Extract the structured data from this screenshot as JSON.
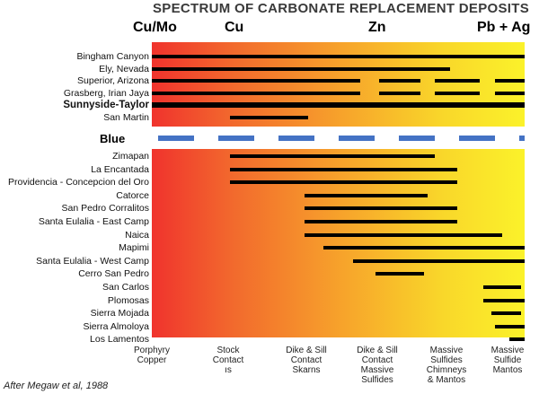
{
  "title": "SPECTRUM OF CARBONATE REPLACEMENT DEPOSITS",
  "metal_headers": [
    "Cu/Mo",
    "Cu",
    "Zn",
    "Pb + Ag"
  ],
  "blue_label": "Blue",
  "credit": "After Megaw et al, 1988",
  "colors": {
    "gradient_start": "#f0332d",
    "gradient_end": "#fbf22a",
    "dash": "#4472c4",
    "bar": "#000000"
  },
  "top_rows": [
    {
      "name": "Bingham Canyon",
      "segments": [
        [
          0,
          5
        ]
      ]
    },
    {
      "name": "Ely, Nevada",
      "segments": [
        [
          0,
          4
        ]
      ]
    },
    {
      "name": "Superior, Arizona",
      "segments": [
        [
          0,
          2.8
        ],
        [
          3.05,
          3.6
        ],
        [
          3.8,
          4.4
        ],
        [
          4.6,
          5.0
        ]
      ]
    },
    {
      "name": "Grasberg, Irian Jaya",
      "segments": [
        [
          0,
          2.8
        ],
        [
          3.05,
          3.6
        ],
        [
          3.8,
          4.4
        ],
        [
          4.6,
          5.0
        ]
      ]
    },
    {
      "name": "Sunnyside-Taylor",
      "segments": [
        [
          0,
          5
        ]
      ],
      "emphasis": true
    },
    {
      "name": "San Martin",
      "segments": [
        [
          1.05,
          2.1
        ]
      ]
    }
  ],
  "bottom_rows": [
    {
      "name": "Zimapan",
      "segments": [
        [
          1.05,
          3.8
        ]
      ]
    },
    {
      "name": "La Encantada",
      "segments": [
        [
          1.05,
          4.1
        ]
      ]
    },
    {
      "name": "Providencia - Concepcion del Oro",
      "segments": [
        [
          1.05,
          4.1
        ]
      ]
    },
    {
      "name": "Catorce",
      "segments": [
        [
          2.05,
          3.7
        ]
      ]
    },
    {
      "name": "San Pedro Corralitos",
      "segments": [
        [
          2.05,
          4.1
        ]
      ]
    },
    {
      "name": "Santa Eulalia - East Camp",
      "segments": [
        [
          2.05,
          4.1
        ]
      ]
    },
    {
      "name": "Naica",
      "segments": [
        [
          2.05,
          4.7
        ]
      ]
    },
    {
      "name": "Mapimi",
      "segments": [
        [
          2.3,
          5.0
        ]
      ]
    },
    {
      "name": "Santa Eulalia - West Camp",
      "segments": [
        [
          2.7,
          5.0
        ]
      ]
    },
    {
      "name": "Cerro San Pedro",
      "segments": [
        [
          3.0,
          3.65
        ]
      ]
    },
    {
      "name": "San Carlos",
      "segments": [
        [
          4.45,
          4.95
        ]
      ]
    },
    {
      "name": "Plomosas",
      "segments": [
        [
          4.45,
          5.0
        ]
      ]
    },
    {
      "name": "Sierra Mojada",
      "segments": [
        [
          4.55,
          4.95
        ]
      ]
    },
    {
      "name": "Sierra Almoloya",
      "segments": [
        [
          4.6,
          5.0
        ]
      ]
    },
    {
      "name": "Los Lamentos",
      "segments": [
        [
          4.8,
          5.0
        ]
      ]
    }
  ],
  "x_categories": [
    "Porphyry\nCopper",
    "Stock\nContact\nıs",
    "Dike & Sill\nContact\nSkarns",
    "Dike & Sill\nContact\nMassive\nSulfides",
    "Massive\nSulfides\nChimneys\n& Mantos",
    "Massive\nSulfide\nMantos"
  ]
}
